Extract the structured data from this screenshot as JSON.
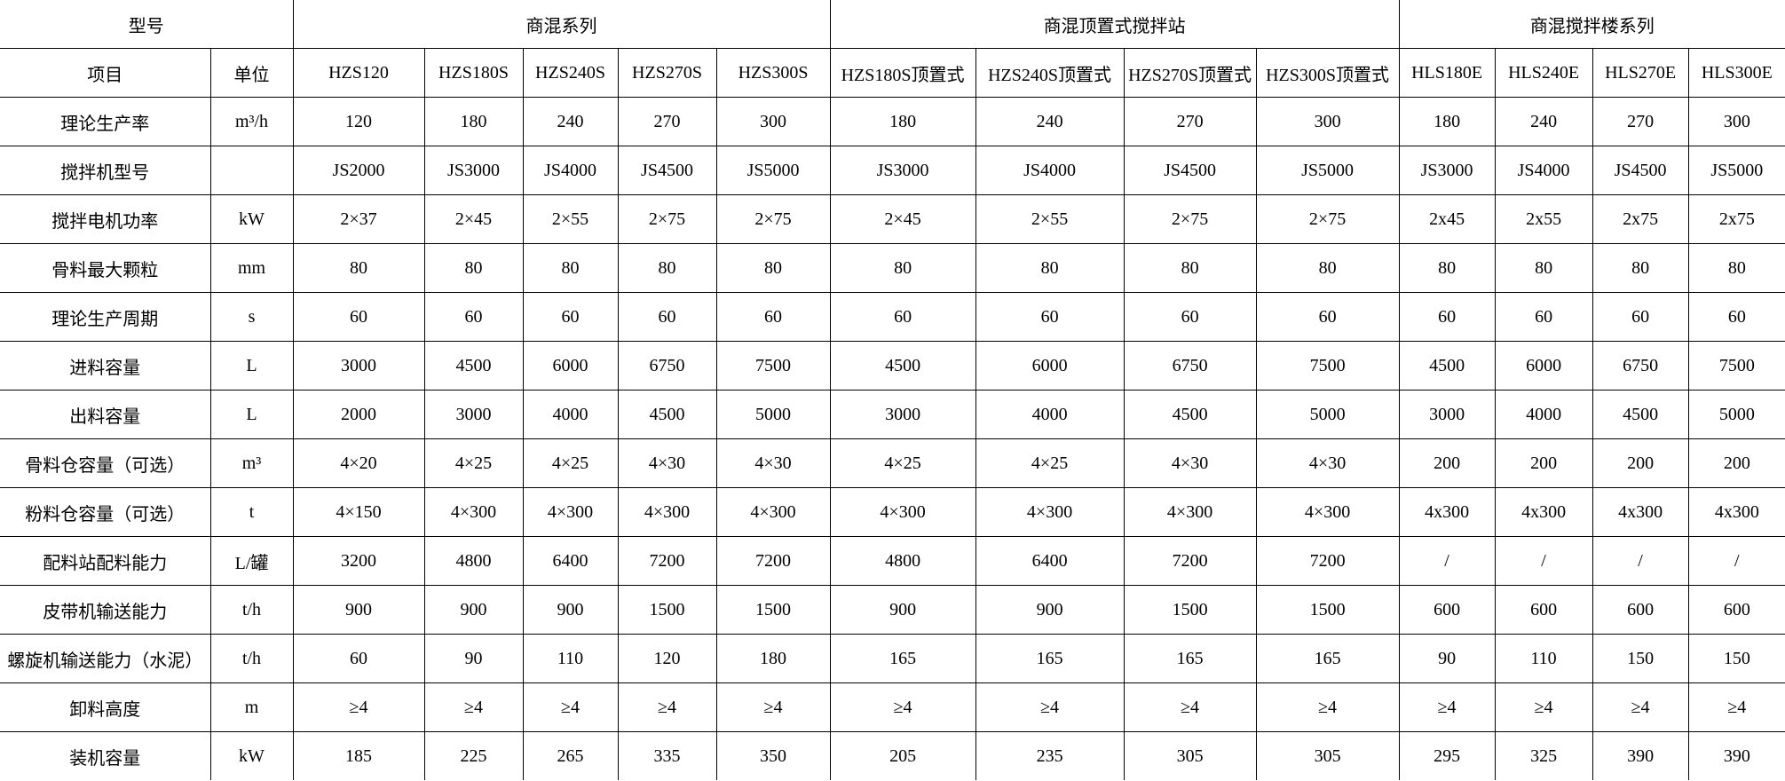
{
  "header": {
    "model_label": "型号",
    "groups": [
      {
        "label": "商混系列",
        "span": 5
      },
      {
        "label": "商混顶置式搅拌站",
        "span": 4
      },
      {
        "label": "商混搅拌楼系列",
        "span": 4
      }
    ]
  },
  "subheader": {
    "item_label": "项目",
    "unit_label": "单位",
    "models": [
      "HZS120",
      "HZS180S",
      "HZS240S",
      "HZS270S",
      "HZS300S",
      "HZS180S顶置式",
      "HZS240S顶置式",
      "HZS270S顶置式",
      "HZS300S顶置式",
      "HLS180E",
      "HLS240E",
      "HLS270E",
      "HLS300E"
    ]
  },
  "rows": [
    {
      "item": "理论生产率",
      "unit": "m³/h",
      "values": [
        "120",
        "180",
        "240",
        "270",
        "300",
        "180",
        "240",
        "270",
        "300",
        "180",
        "240",
        "270",
        "300"
      ]
    },
    {
      "item": "搅拌机型号",
      "unit": "",
      "values": [
        "JS2000",
        "JS3000",
        "JS4000",
        "JS4500",
        "JS5000",
        "JS3000",
        "JS4000",
        "JS4500",
        "JS5000",
        "JS3000",
        "JS4000",
        "JS4500",
        "JS5000"
      ]
    },
    {
      "item": "搅拌电机功率",
      "unit": "kW",
      "values": [
        "2×37",
        "2×45",
        "2×55",
        "2×75",
        "2×75",
        "2×45",
        "2×55",
        "2×75",
        "2×75",
        "2x45",
        "2x55",
        "2x75",
        "2x75"
      ]
    },
    {
      "item": "骨料最大颗粒",
      "unit": "mm",
      "values": [
        "80",
        "80",
        "80",
        "80",
        "80",
        "80",
        "80",
        "80",
        "80",
        "80",
        "80",
        "80",
        "80"
      ]
    },
    {
      "item": "理论生产周期",
      "unit": "s",
      "values": [
        "60",
        "60",
        "60",
        "60",
        "60",
        "60",
        "60",
        "60",
        "60",
        "60",
        "60",
        "60",
        "60"
      ]
    },
    {
      "item": "进料容量",
      "unit": "L",
      "values": [
        "3000",
        "4500",
        "6000",
        "6750",
        "7500",
        "4500",
        "6000",
        "6750",
        "7500",
        "4500",
        "6000",
        "6750",
        "7500"
      ]
    },
    {
      "item": "出料容量",
      "unit": "L",
      "values": [
        "2000",
        "3000",
        "4000",
        "4500",
        "5000",
        "3000",
        "4000",
        "4500",
        "5000",
        "3000",
        "4000",
        "4500",
        "5000"
      ]
    },
    {
      "item": "骨料仓容量（可选）",
      "unit": "m³",
      "values": [
        "4×20",
        "4×25",
        "4×25",
        "4×30",
        "4×30",
        "4×25",
        "4×25",
        "4×30",
        "4×30",
        "200",
        "200",
        "200",
        "200"
      ]
    },
    {
      "item": "粉料仓容量（可选）",
      "unit": "t",
      "values": [
        "4×150",
        "4×300",
        "4×300",
        "4×300",
        "4×300",
        "4×300",
        "4×300",
        "4×300",
        "4×300",
        "4x300",
        "4x300",
        "4x300",
        "4x300"
      ]
    },
    {
      "item": "配料站配料能力",
      "unit": "L/罐",
      "values": [
        "3200",
        "4800",
        "6400",
        "7200",
        "7200",
        "4800",
        "6400",
        "7200",
        "7200",
        "/",
        "/",
        "/",
        "/"
      ]
    },
    {
      "item": "皮带机输送能力",
      "unit": "t/h",
      "values": [
        "900",
        "900",
        "900",
        "1500",
        "1500",
        "900",
        "900",
        "1500",
        "1500",
        "600",
        "600",
        "600",
        "600"
      ]
    },
    {
      "item": "螺旋机输送能力（水泥）",
      "unit": "t/h",
      "values": [
        "60",
        "90",
        "110",
        "120",
        "180",
        "165",
        "165",
        "165",
        "165",
        "90",
        "110",
        "150",
        "150"
      ]
    },
    {
      "item": "卸料高度",
      "unit": "m",
      "values": [
        "≥4",
        "≥4",
        "≥4",
        "≥4",
        "≥4",
        "≥4",
        "≥4",
        "≥4",
        "≥4",
        "≥4",
        "≥4",
        "≥4",
        "≥4"
      ]
    },
    {
      "item": "装机容量",
      "unit": "kW",
      "values": [
        "185",
        "225",
        "265",
        "335",
        "350",
        "205",
        "235",
        "305",
        "305",
        "295",
        "325",
        "390",
        "390"
      ]
    }
  ]
}
